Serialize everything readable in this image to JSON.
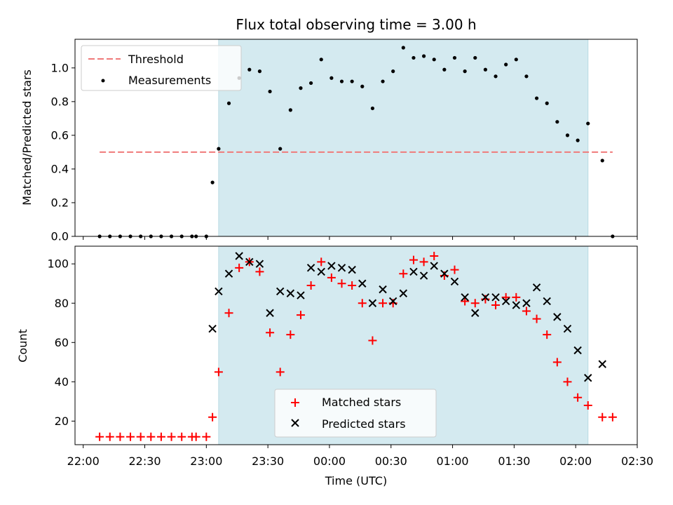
{
  "title": "Flux total observing time = 3.00 h",
  "chart_data": [
    {
      "type": "scatter",
      "ylabel": "Matched/Predicted stars",
      "ylim": [
        0,
        1.17
      ],
      "yticks": [
        "0.0",
        "0.2",
        "0.4",
        "0.6",
        "0.8",
        "1.0"
      ],
      "xlim": [
        "21:56",
        "02:30"
      ],
      "grid": false,
      "legend_position": "upper-left",
      "shaded_interval": {
        "start": "23:06",
        "end": "02:06",
        "color": "#d4eaf0"
      },
      "threshold": {
        "name": "Threshold",
        "y": 0.5,
        "x_start": "22:08",
        "x_end": "02:18",
        "color": "#f07a7a"
      },
      "series": [
        {
          "name": "Measurements",
          "marker": "dot",
          "color": "#000000",
          "x": [
            "22:08",
            "22:13",
            "22:18",
            "22:23",
            "22:28",
            "22:33",
            "22:38",
            "22:43",
            "22:48",
            "22:53",
            "22:55",
            "23:00",
            "23:03",
            "23:06",
            "23:11",
            "23:16",
            "23:21",
            "23:26",
            "23:31",
            "23:36",
            "23:41",
            "23:46",
            "23:51",
            "23:56",
            "00:01",
            "00:06",
            "00:11",
            "00:16",
            "00:21",
            "00:26",
            "00:31",
            "00:36",
            "00:41",
            "00:46",
            "00:51",
            "00:56",
            "01:01",
            "01:06",
            "01:11",
            "01:16",
            "01:21",
            "01:26",
            "01:31",
            "01:36",
            "01:41",
            "01:46",
            "01:51",
            "01:56",
            "02:01",
            "02:06",
            "02:13",
            "02:18"
          ],
          "y": [
            0.0,
            0.0,
            0.0,
            0.0,
            0.0,
            0.0,
            0.0,
            0.0,
            0.0,
            0.0,
            0.0,
            0.0,
            0.32,
            0.52,
            0.79,
            0.94,
            0.99,
            0.98,
            0.86,
            0.52,
            0.75,
            0.88,
            0.91,
            1.05,
            0.94,
            0.92,
            0.92,
            0.89,
            0.76,
            0.92,
            0.98,
            1.12,
            1.06,
            1.07,
            1.05,
            0.99,
            1.06,
            0.98,
            1.06,
            0.99,
            0.95,
            1.02,
            1.05,
            0.95,
            0.82,
            0.79,
            0.68,
            0.6,
            0.57,
            0.67,
            0.45,
            0.0
          ]
        }
      ]
    },
    {
      "type": "scatter",
      "ylabel": "Count",
      "xlabel": "Time (UTC)",
      "ylim": [
        8,
        109
      ],
      "yticks": [
        "20",
        "40",
        "60",
        "80",
        "100"
      ],
      "xlim": [
        "21:56",
        "02:30"
      ],
      "xticks": [
        "22:00",
        "22:30",
        "23:00",
        "23:30",
        "00:00",
        "00:30",
        "01:00",
        "01:30",
        "02:00",
        "02:30"
      ],
      "grid": false,
      "legend_position": "lower-center",
      "shaded_interval": {
        "start": "23:06",
        "end": "02:06",
        "color": "#d4eaf0"
      },
      "series": [
        {
          "name": "Matched stars",
          "marker": "plus",
          "color": "#ff0000",
          "x": [
            "22:08",
            "22:13",
            "22:18",
            "22:23",
            "22:28",
            "22:33",
            "22:38",
            "22:43",
            "22:48",
            "22:53",
            "22:55",
            "23:00",
            "23:03",
            "23:06",
            "23:11",
            "23:16",
            "23:21",
            "23:26",
            "23:31",
            "23:36",
            "23:41",
            "23:46",
            "23:51",
            "23:56",
            "00:01",
            "00:06",
            "00:11",
            "00:16",
            "00:21",
            "00:26",
            "00:31",
            "00:36",
            "00:41",
            "00:46",
            "00:51",
            "00:56",
            "01:01",
            "01:06",
            "01:11",
            "01:16",
            "01:21",
            "01:26",
            "01:31",
            "01:36",
            "01:41",
            "01:46",
            "01:51",
            "01:56",
            "02:01",
            "02:06",
            "02:13",
            "02:18"
          ],
          "y": [
            12,
            12,
            12,
            12,
            12,
            12,
            12,
            12,
            12,
            12,
            12,
            12,
            22,
            45,
            75,
            98,
            101,
            96,
            65,
            45,
            64,
            74,
            89,
            101,
            93,
            90,
            89,
            80,
            61,
            80,
            80,
            95,
            102,
            101,
            104,
            94,
            97,
            81,
            80,
            82,
            79,
            83,
            83,
            76,
            72,
            64,
            50,
            40,
            32,
            28,
            22,
            22
          ]
        },
        {
          "name": "Predicted stars",
          "marker": "x",
          "color": "#000000",
          "x": [
            "23:03",
            "23:06",
            "23:11",
            "23:16",
            "23:21",
            "23:26",
            "23:31",
            "23:36",
            "23:41",
            "23:46",
            "23:51",
            "23:56",
            "00:01",
            "00:06",
            "00:11",
            "00:16",
            "00:21",
            "00:26",
            "00:31",
            "00:36",
            "00:41",
            "00:46",
            "00:51",
            "00:56",
            "01:01",
            "01:06",
            "01:11",
            "01:16",
            "01:21",
            "01:26",
            "01:31",
            "01:36",
            "01:41",
            "01:46",
            "01:51",
            "01:56",
            "02:01",
            "02:06",
            "02:13"
          ],
          "y": [
            67,
            86,
            95,
            104,
            101,
            100,
            75,
            86,
            85,
            84,
            98,
            96,
            99,
            98,
            97,
            90,
            80,
            87,
            81,
            85,
            96,
            94,
            99,
            95,
            91,
            83,
            75,
            83,
            83,
            81,
            79,
            80,
            88,
            81,
            73,
            67,
            56,
            42,
            49
          ]
        }
      ]
    }
  ]
}
